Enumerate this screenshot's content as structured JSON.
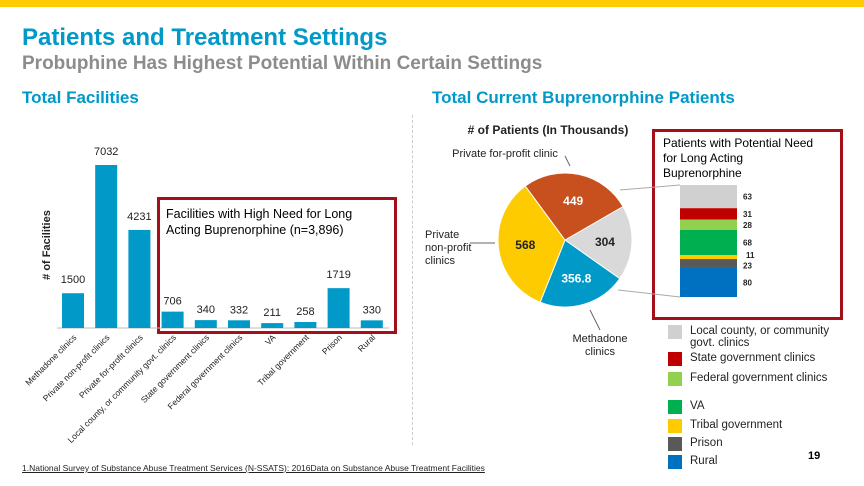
{
  "header": {
    "title": "Patients and Treatment Settings",
    "subtitle": "Probuphine Has Highest Potential Within Certain Settings"
  },
  "left_heading": "Total Facilities",
  "right_heading": "Total Current Buprenorphine Patients",
  "facilities_box": "Facilities with High Need for Long Acting Buprenorphine (n=3,896)",
  "stack_box": "Patients with Potential Need for Long Acting Buprenorphine",
  "chart_data": [
    {
      "type": "bar",
      "ylabel": "# of Facilities",
      "categories": [
        "Methadone clinics",
        "Private non-profit clinics",
        "Private for-profit clinics",
        "Local county, or community govt. clinics",
        "State government clinics",
        "Federal government clinics",
        "VA",
        "Tribal government",
        "Prison",
        "Rural"
      ],
      "values": [
        1500,
        7032,
        4231,
        706,
        340,
        332,
        211,
        258,
        1719,
        330
      ],
      "color": "#0099c8"
    },
    {
      "type": "pie",
      "title": "# of Patients (In Thousands)",
      "slices": [
        {
          "label": "",
          "value": 304,
          "color": "#d9d9d9"
        },
        {
          "label": "Methadone clinics",
          "value": 356.8,
          "color": "#0099c8"
        },
        {
          "label": "Private non-profit clinics",
          "value": 568,
          "color": "#fecb00"
        },
        {
          "label": "Private for-profit clinic",
          "value": 449,
          "color": "#c8501e"
        }
      ]
    },
    {
      "type": "bar",
      "stacked": true,
      "series": [
        {
          "name": "Local county, or community govt. clinics",
          "value": 63,
          "color": "#d0d0d0"
        },
        {
          "name": "State government clinics",
          "value": 31,
          "color": "#c00000"
        },
        {
          "name": "Federal government clinics",
          "value": 28,
          "color": "#92d050"
        },
        {
          "name": "VA",
          "value": 68,
          "color": "#00b050"
        },
        {
          "name": "Tribal government",
          "value": 11,
          "color": "#fecb00"
        },
        {
          "name": "Prison",
          "value": 23,
          "color": "#595959"
        },
        {
          "name": "Rural",
          "value": 80,
          "color": "#0070c0"
        }
      ]
    }
  ],
  "footnote": "1.National Survey of Substance Abuse Treatment Services (N-SSATS): 2016Data on Substance Abuse Treatment Facilities",
  "page_number": "19"
}
